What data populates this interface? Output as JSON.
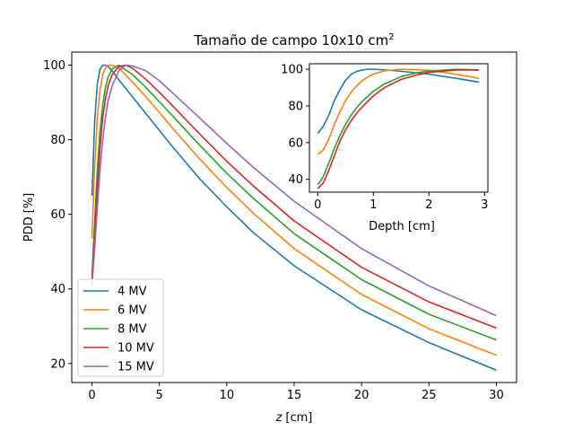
{
  "chart_data": [
    {
      "type": "line",
      "title": "Tamaño de campo 10x10 cm",
      "title_sup": "2",
      "xlabel_var": "z",
      "xlabel_unit": "[cm]",
      "ylabel": "PDD [%]",
      "xlim": [
        -1.5,
        31.5
      ],
      "ylim": [
        14.9,
        103.5
      ],
      "xticks": [
        0,
        5,
        10,
        15,
        20,
        25,
        30
      ],
      "yticks": [
        20,
        40,
        60,
        80,
        100
      ],
      "legend_position": "lower-left",
      "series": [
        {
          "name": "4 MV",
          "color": "#1f77b4",
          "x": [
            0,
            0.2,
            0.4,
            0.6,
            0.8,
            1.0,
            1.2,
            1.5,
            2,
            3,
            4,
            5,
            6,
            8,
            10,
            12,
            15,
            20,
            25,
            30
          ],
          "y": [
            65,
            85,
            95,
            99,
            100,
            100,
            99.6,
            98.5,
            96,
            91.5,
            87,
            82.5,
            78,
            69.5,
            62,
            55,
            46.2,
            34.4,
            25.6,
            18.2
          ]
        },
        {
          "name": "6 MV",
          "color": "#ff7f0e",
          "x": [
            0,
            0.2,
            0.4,
            0.6,
            0.8,
            1.0,
            1.2,
            1.5,
            2,
            3,
            4,
            5,
            6,
            8,
            10,
            12,
            15,
            20,
            25,
            30
          ],
          "y": [
            53.5,
            73,
            86,
            93.5,
            97.5,
            99.2,
            100,
            100,
            99.2,
            95.5,
            91.5,
            87.3,
            83,
            74.8,
            67.2,
            60.2,
            50.8,
            38.5,
            29.3,
            22.2
          ]
        },
        {
          "name": "8 MV",
          "color": "#2ca02c",
          "x": [
            0,
            0.2,
            0.4,
            0.6,
            0.8,
            1.0,
            1.2,
            1.5,
            2,
            3,
            4,
            5,
            6,
            8,
            10,
            12,
            15,
            20,
            25,
            30
          ],
          "y": [
            43.5,
            58,
            72,
            82.5,
            89.5,
            94,
            96.8,
            99,
            100,
            97.5,
            94,
            90.2,
            86.3,
            78.5,
            71,
            64.2,
            54.8,
            42.5,
            33.2,
            26.3
          ]
        },
        {
          "name": "10 MV",
          "color": "#d62728",
          "x": [
            0,
            0.2,
            0.4,
            0.6,
            0.8,
            1.0,
            1.2,
            1.5,
            2,
            2.5,
            3,
            4,
            5,
            6,
            8,
            10,
            12,
            15,
            20,
            25,
            30
          ],
          "y": [
            42.5,
            54,
            67,
            78,
            86,
            91,
            94.5,
            97.5,
            99.6,
            100,
            99.2,
            96.2,
            92.7,
            89,
            81.5,
            74.2,
            67.5,
            58.2,
            45.8,
            36.5,
            29.5
          ]
        },
        {
          "name": "15 MV",
          "color": "#9467bd",
          "x": [
            0,
            0.2,
            0.4,
            0.6,
            0.8,
            1.0,
            1.2,
            1.5,
            2,
            2.5,
            3,
            4,
            5,
            6,
            8,
            10,
            12,
            15,
            20,
            25,
            30
          ],
          "y": [
            41,
            51,
            62,
            72,
            80,
            86,
            90.5,
            94.5,
            98.5,
            100,
            99.8,
            98.5,
            95.8,
            92.5,
            85.8,
            79,
            72.5,
            63.5,
            50.8,
            40.8,
            32.8
          ]
        }
      ]
    },
    {
      "type": "line",
      "title": "",
      "xlabel": "Depth [cm]",
      "ylabel": "",
      "xlim": [
        -0.15,
        3.06
      ],
      "ylim": [
        33,
        103
      ],
      "xticks": [
        0,
        1,
        2,
        3
      ],
      "yticks": [
        40,
        60,
        80,
        100
      ],
      "series": [
        {
          "name": "",
          "color": "#1f77b4",
          "x": [
            0,
            0.1,
            0.2,
            0.3,
            0.4,
            0.5,
            0.6,
            0.7,
            0.8,
            0.9,
            1.0,
            1.2,
            1.5,
            2.0,
            2.5,
            2.9
          ],
          "y": [
            65,
            69,
            75,
            83,
            89,
            94,
            97.2,
            98.8,
            99.6,
            100,
            100,
            99.7,
            98.9,
            97.3,
            95,
            93
          ]
        },
        {
          "name": "",
          "color": "#ff7f0e",
          "x": [
            0,
            0.1,
            0.2,
            0.3,
            0.4,
            0.5,
            0.6,
            0.7,
            0.8,
            0.9,
            1.0,
            1.2,
            1.5,
            2.0,
            2.5,
            2.9
          ],
          "y": [
            53.5,
            56,
            62,
            70,
            77,
            83,
            87.5,
            91,
            93.8,
            95.8,
            97.3,
            99.2,
            100,
            99.5,
            97.2,
            95
          ]
        },
        {
          "name": "",
          "color": "#2ca02c",
          "x": [
            0,
            0.1,
            0.2,
            0.3,
            0.4,
            0.5,
            0.6,
            0.7,
            0.8,
            1.0,
            1.2,
            1.5,
            1.8,
            2.0,
            2.5,
            2.9
          ],
          "y": [
            37,
            41.5,
            49,
            57,
            64,
            70,
            75,
            79,
            82.5,
            88,
            92,
            96,
            98.2,
            99,
            100,
            99.6
          ]
        },
        {
          "name": "",
          "color": "#d62728",
          "x": [
            0,
            0.1,
            0.2,
            0.3,
            0.4,
            0.5,
            0.6,
            0.7,
            0.8,
            1.0,
            1.2,
            1.5,
            1.8,
            2.0,
            2.5,
            2.9
          ],
          "y": [
            35,
            38,
            45,
            53,
            61,
            67,
            72,
            76,
            79.5,
            85.5,
            90,
            94.5,
            97,
            98.3,
            99.6,
            99.6
          ]
        }
      ]
    }
  ]
}
